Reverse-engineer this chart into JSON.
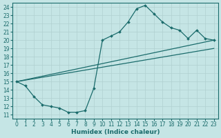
{
  "bg_color": "#c5e5e5",
  "line_color": "#1a6b6b",
  "grid_color": "#b0d0d0",
  "xlabel": "Humidex (Indice chaleur)",
  "xlim": [
    -0.5,
    23.5
  ],
  "ylim": [
    10.5,
    24.5
  ],
  "xticks": [
    0,
    1,
    2,
    3,
    4,
    5,
    6,
    7,
    8,
    9,
    10,
    11,
    12,
    13,
    14,
    15,
    16,
    17,
    18,
    19,
    20,
    21,
    22,
    23
  ],
  "yticks": [
    11,
    12,
    13,
    14,
    15,
    16,
    17,
    18,
    19,
    20,
    21,
    22,
    23,
    24
  ],
  "curve_x": [
    0,
    1,
    2,
    3,
    4,
    5,
    6,
    7,
    8,
    9,
    10,
    11,
    12,
    13,
    14,
    15,
    16,
    17,
    18,
    19,
    20,
    21,
    22,
    23
  ],
  "curve_y": [
    15,
    14.5,
    13.2,
    12.2,
    12.0,
    11.8,
    11.3,
    11.3,
    11.5,
    14.2,
    20.0,
    20.5,
    21.0,
    22.2,
    23.8,
    24.2,
    23.2,
    22.2,
    21.5,
    21.2,
    20.2,
    21.2,
    20.2,
    20.0
  ],
  "line1_x": [
    0,
    23
  ],
  "line1_y": [
    15.0,
    20.0
  ],
  "line2_x": [
    0,
    23
  ],
  "line2_y": [
    15.0,
    19.0
  ]
}
